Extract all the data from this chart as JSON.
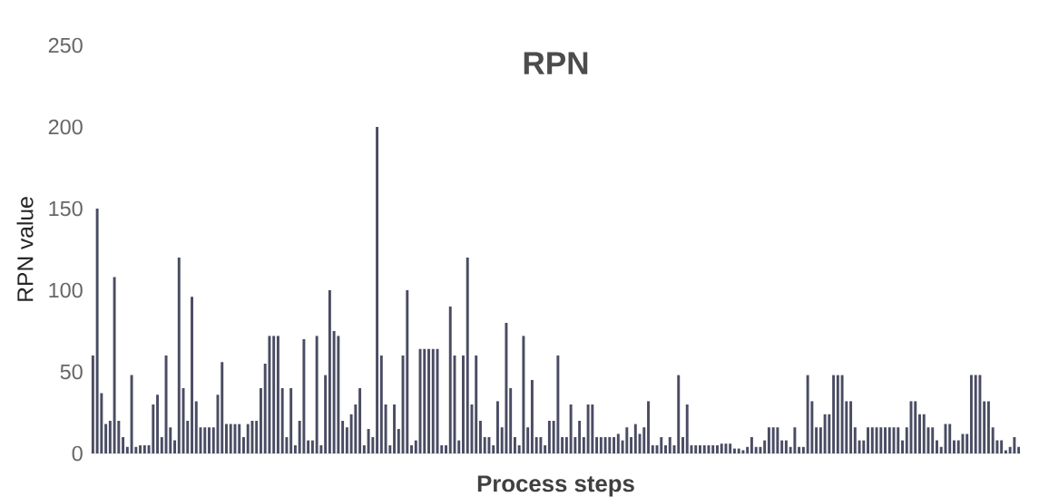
{
  "chart_data": {
    "type": "bar",
    "title": "RPN",
    "xlabel": "Process steps",
    "ylabel": "RPN value",
    "categories": [
      null,
      null,
      null,
      null,
      null,
      null,
      null,
      null,
      null,
      null,
      null,
      null,
      null,
      null,
      null,
      null,
      null,
      null,
      null,
      null,
      null,
      null,
      null,
      null,
      null,
      null,
      null,
      null,
      null,
      null,
      null,
      null,
      null,
      null,
      null,
      null,
      null,
      null,
      null,
      null,
      null,
      null,
      null,
      null,
      null,
      null,
      null,
      null,
      null,
      null,
      null,
      null,
      null,
      null,
      null,
      null,
      null,
      null,
      null,
      null,
      null,
      null,
      null,
      null,
      null,
      null,
      null,
      null,
      null,
      null,
      null,
      null,
      null,
      null,
      null,
      null,
      null,
      null,
      null,
      null,
      null,
      null,
      null,
      null,
      null,
      null,
      null,
      null,
      null,
      null,
      null,
      null,
      null,
      null,
      null,
      null,
      null,
      null,
      null,
      null,
      null,
      null,
      null,
      null,
      null,
      null,
      null,
      null,
      null,
      null,
      null,
      null,
      null,
      null,
      null,
      null,
      null,
      null,
      null,
      null,
      null,
      null,
      null,
      null,
      null,
      null,
      null,
      null,
      null,
      null,
      null,
      null,
      null,
      null,
      null,
      null,
      null,
      null,
      null,
      null,
      null,
      null,
      null,
      null,
      null,
      null,
      null,
      null,
      null,
      null,
      null,
      null,
      null,
      null,
      null,
      null,
      null,
      null,
      null,
      null,
      null,
      null,
      null,
      null,
      null,
      null,
      null,
      null,
      null,
      null,
      null,
      null,
      null,
      null,
      null,
      null,
      null,
      null,
      null,
      null,
      null,
      null,
      null,
      null,
      null,
      null,
      null,
      null,
      null,
      null,
      null,
      null,
      null,
      null,
      null,
      null,
      null,
      null,
      null,
      null,
      null,
      null,
      null,
      null,
      null,
      null,
      null,
      null,
      null,
      null,
      null,
      null,
      null,
      null,
      null,
      null
    ],
    "values": [
      60,
      150,
      37,
      18,
      20,
      108,
      20,
      10,
      4,
      48,
      4,
      5,
      5,
      5,
      30,
      36,
      10,
      60,
      16,
      8,
      120,
      40,
      20,
      96,
      32,
      16,
      16,
      16,
      16,
      36,
      56,
      18,
      18,
      18,
      18,
      10,
      18,
      20,
      20,
      40,
      55,
      72,
      72,
      72,
      40,
      10,
      40,
      5,
      20,
      70,
      8,
      8,
      72,
      5,
      48,
      100,
      75,
      72,
      20,
      16,
      24,
      30,
      40,
      5,
      15,
      10,
      200,
      60,
      30,
      5,
      30,
      15,
      60,
      100,
      5,
      8,
      64,
      64,
      64,
      64,
      64,
      5,
      5,
      90,
      60,
      8,
      60,
      120,
      30,
      60,
      20,
      10,
      10,
      5,
      32,
      16,
      80,
      40,
      10,
      5,
      72,
      16,
      45,
      10,
      10,
      5,
      20,
      20,
      60,
      10,
      10,
      30,
      10,
      20,
      10,
      30,
      30,
      10,
      10,
      10,
      10,
      10,
      12,
      8,
      16,
      10,
      18,
      12,
      16,
      32,
      5,
      5,
      10,
      5,
      10,
      5,
      48,
      10,
      30,
      5,
      5,
      5,
      5,
      5,
      5,
      5,
      6,
      6,
      6,
      3,
      3,
      2,
      4,
      10,
      4,
      4,
      8,
      16,
      16,
      16,
      8,
      8,
      4,
      16,
      4,
      4,
      48,
      32,
      16,
      16,
      24,
      24,
      48,
      48,
      48,
      32,
      32,
      16,
      8,
      8,
      16,
      16,
      16,
      16,
      16,
      16,
      16,
      16,
      8,
      16,
      32,
      32,
      24,
      24,
      16,
      16,
      8,
      4,
      18,
      18,
      8,
      8,
      12,
      12,
      48,
      48,
      48,
      32,
      32,
      16,
      8,
      8,
      2,
      4,
      10,
      4
    ],
    "color": "#4a4c63",
    "ylim": [
      0,
      250
    ],
    "yticks": [
      0,
      50,
      100,
      150,
      200,
      250
    ]
  }
}
